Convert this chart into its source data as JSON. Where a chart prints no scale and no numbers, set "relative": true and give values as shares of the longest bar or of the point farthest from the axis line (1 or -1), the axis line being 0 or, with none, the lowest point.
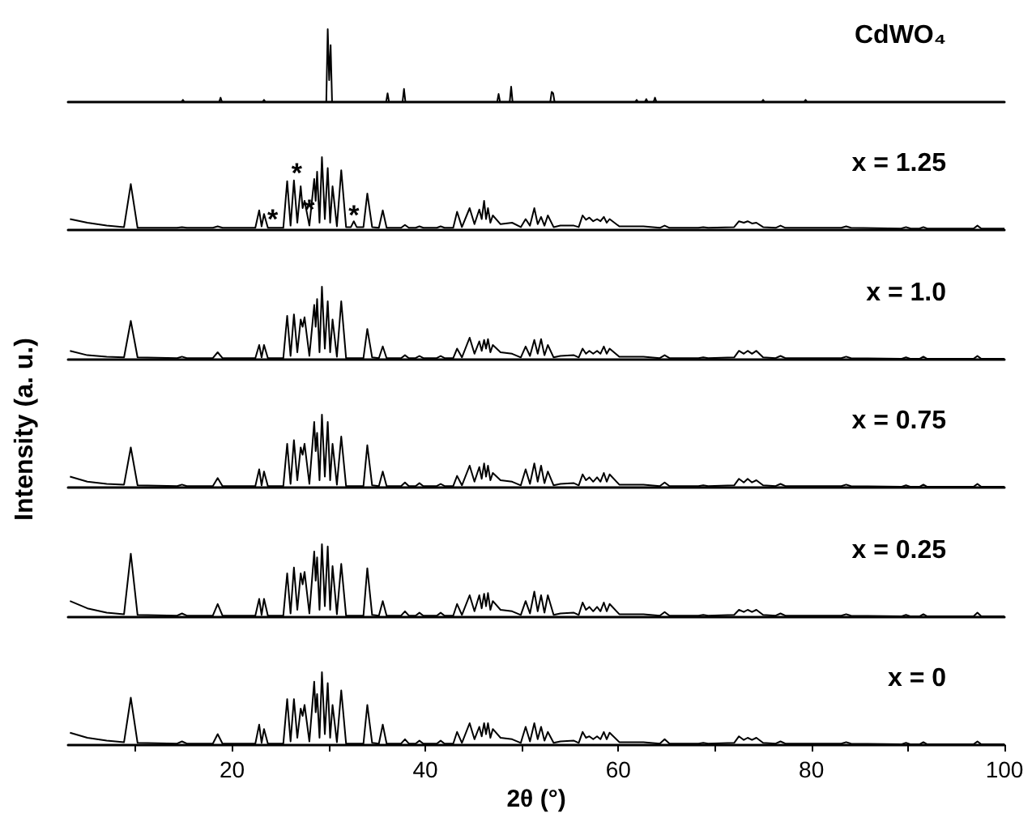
{
  "chart_data": [
    {
      "type": "line",
      "relative": true,
      "xlim": [
        3,
        100
      ],
      "tick_labels": false,
      "legend": false,
      "grid": false,
      "marker": "none",
      "x": [
        3,
        14.75,
        14.9,
        15.05,
        18.65,
        18.8,
        18.95,
        23.15,
        23.3,
        23.45,
        29.75,
        29.9,
        30.05,
        30.2,
        30.35,
        35.95,
        36.1,
        36.25,
        37.65,
        37.8,
        37.95,
        47.45,
        47.6,
        47.75,
        48.75,
        48.9,
        49.05,
        52.95,
        53.1,
        53.25,
        53.4,
        61.75,
        61.9,
        62.05,
        62.75,
        62.9,
        63.05,
        63.65,
        63.8,
        63.95,
        74.85,
        75,
        75.15,
        79.25,
        79.4,
        79.55,
        100
      ],
      "series": [
        {
          "name": "CdWO₄",
          "color": "#000000",
          "values": [
            0,
            0,
            0.03,
            0,
            0,
            0.06,
            0,
            0,
            0.03,
            0,
            0,
            1,
            0.3,
            0.78,
            0,
            0,
            0.12,
            0,
            0,
            0.18,
            0,
            0,
            0.11,
            0,
            0,
            0.21,
            0,
            0,
            0.14,
            0.12,
            0,
            0,
            0.03,
            0,
            0,
            0.04,
            0,
            0,
            0.06,
            0,
            0,
            0.03,
            0,
            0,
            0.03,
            0,
            0
          ]
        }
      ]
    },
    {
      "type": "line",
      "relative": true,
      "xlim": [
        3,
        100
      ],
      "tick_labels": false,
      "legend": false,
      "grid": false,
      "marker": "none",
      "annotations": [
        {
          "text": "*",
          "x": 24.2,
          "y": 0.15
        },
        {
          "text": "*",
          "x": 26.7,
          "y": 0.78
        },
        {
          "text": "*",
          "x": 28,
          "y": 0.28
        },
        {
          "text": "*",
          "x": 32.6,
          "y": 0.2
        }
      ],
      "x": [
        3.2,
        5,
        7,
        8.8,
        9.5,
        10.2,
        14.3,
        14.8,
        15.3,
        18,
        18.5,
        19,
        22.4,
        22.8,
        23.05,
        23.3,
        23.7,
        25.3,
        25.7,
        26.05,
        26.4,
        26.75,
        27.1,
        27.3,
        27.5,
        28,
        28.5,
        28.65,
        28.8,
        29.05,
        29.3,
        29.6,
        29.9,
        30.15,
        30.4,
        30.85,
        31.3,
        31.8,
        32.3,
        32.6,
        32.9,
        33.6,
        34,
        34.5,
        35.2,
        35.6,
        36,
        37.5,
        37.9,
        38.3,
        39,
        39.4,
        39.8,
        41.2,
        41.6,
        42,
        42.9,
        43.3,
        43.8,
        44.6,
        45.1,
        45.6,
        45.85,
        46.1,
        46.3,
        46.5,
        46.75,
        47,
        47.8,
        49,
        49.9,
        50.4,
        50.85,
        51.3,
        51.65,
        52,
        52.35,
        52.7,
        53.3,
        54,
        55.4,
        55.9,
        56.3,
        56.65,
        57,
        57.4,
        57.8,
        58.15,
        58.5,
        58.8,
        59.1,
        60.1,
        62.6,
        64.3,
        64.8,
        65.3,
        68.3,
        68.8,
        69.3,
        72,
        72.5,
        73,
        73.4,
        73.85,
        74.3,
        75,
        76.3,
        76.8,
        77.3,
        80,
        83.1,
        83.6,
        84.1,
        89.3,
        89.8,
        90.3,
        91.2,
        91.6,
        92,
        96.8,
        97.2,
        97.6,
        100
      ],
      "series": [
        {
          "name": "x = 1.25",
          "color": "#000000",
          "values": [
            0.15,
            0.1,
            0.06,
            0.04,
            0.63,
            0.03,
            0.03,
            0.04,
            0.03,
            0.03,
            0.05,
            0.03,
            0.03,
            0.27,
            0.05,
            0.22,
            0.03,
            0.03,
            0.67,
            0.06,
            0.68,
            0.1,
            0.6,
            0.3,
            0.4,
            0.06,
            0.7,
            0.4,
            0.8,
            0.1,
            1,
            0.15,
            0.85,
            0.1,
            0.6,
            0.05,
            0.82,
            0.04,
            0.04,
            0.12,
            0.04,
            0.04,
            0.5,
            0.04,
            0.03,
            0.27,
            0.03,
            0.03,
            0.07,
            0.03,
            0.03,
            0.05,
            0.03,
            0.03,
            0.05,
            0.03,
            0.03,
            0.25,
            0.04,
            0.3,
            0.08,
            0.28,
            0.15,
            0.4,
            0.15,
            0.3,
            0.1,
            0.2,
            0.08,
            0.1,
            0.04,
            0.15,
            0.06,
            0.3,
            0.08,
            0.18,
            0.06,
            0.2,
            0.04,
            0.06,
            0.06,
            0.04,
            0.2,
            0.14,
            0.17,
            0.12,
            0.15,
            0.12,
            0.18,
            0.1,
            0.15,
            0.05,
            0.05,
            0.03,
            0.06,
            0.03,
            0.03,
            0.04,
            0.03,
            0.04,
            0.12,
            0.1,
            0.12,
            0.09,
            0.1,
            0.04,
            0.03,
            0.06,
            0.03,
            0.03,
            0.03,
            0.05,
            0.03,
            0.02,
            0.04,
            0.02,
            0.02,
            0.04,
            0.02,
            0.02,
            0.06,
            0.02,
            0.02
          ]
        }
      ]
    },
    {
      "type": "line",
      "relative": true,
      "xlim": [
        3,
        100
      ],
      "tick_labels": false,
      "legend": false,
      "grid": false,
      "marker": "none",
      "x": [
        3.2,
        5,
        7,
        8.8,
        9.5,
        10.2,
        14.3,
        14.8,
        15.3,
        18,
        18.5,
        19,
        22.4,
        22.8,
        23.05,
        23.3,
        23.7,
        25.3,
        25.7,
        26.05,
        26.4,
        26.75,
        27.1,
        27.3,
        27.5,
        28,
        28.5,
        28.65,
        28.8,
        29.05,
        29.3,
        29.6,
        29.9,
        30.15,
        30.4,
        30.85,
        31.3,
        31.8,
        33.6,
        34,
        34.5,
        35.2,
        35.6,
        36,
        37.5,
        37.9,
        38.3,
        39,
        39.4,
        39.8,
        41.2,
        41.6,
        42,
        42.9,
        43.3,
        43.8,
        44.6,
        45.1,
        45.6,
        45.85,
        46.1,
        46.3,
        46.5,
        46.75,
        47,
        47.8,
        49,
        49.9,
        50.4,
        50.85,
        51.3,
        51.65,
        52,
        52.35,
        52.7,
        53.3,
        54,
        55.4,
        55.9,
        56.3,
        56.65,
        57,
        57.4,
        57.8,
        58.15,
        58.5,
        58.8,
        59.1,
        60.1,
        62.6,
        64.3,
        64.8,
        65.3,
        68.3,
        68.8,
        69.3,
        72,
        72.5,
        73,
        73.4,
        73.85,
        74.3,
        75,
        76.3,
        76.8,
        77.3,
        80,
        83.1,
        83.6,
        84.1,
        89.3,
        89.8,
        90.3,
        91.2,
        91.6,
        92,
        96.8,
        97.2,
        97.6,
        100
      ],
      "series": [
        {
          "name": "x = 1.0",
          "color": "#000000",
          "values": [
            0.12,
            0.06,
            0.04,
            0.03,
            0.53,
            0.03,
            0.02,
            0.04,
            0.02,
            0.02,
            0.1,
            0.02,
            0.02,
            0.2,
            0.03,
            0.2,
            0.02,
            0.02,
            0.6,
            0.05,
            0.62,
            0.1,
            0.55,
            0.45,
            0.58,
            0.05,
            0.75,
            0.45,
            0.83,
            0.1,
            1,
            0.15,
            0.8,
            0.1,
            0.55,
            0.04,
            0.8,
            0.02,
            0.02,
            0.42,
            0.03,
            0.02,
            0.18,
            0.02,
            0.02,
            0.06,
            0.02,
            0.02,
            0.05,
            0.02,
            0.02,
            0.05,
            0.02,
            0.02,
            0.15,
            0.03,
            0.3,
            0.08,
            0.25,
            0.12,
            0.27,
            0.15,
            0.28,
            0.1,
            0.2,
            0.1,
            0.08,
            0.03,
            0.18,
            0.05,
            0.27,
            0.08,
            0.28,
            0.06,
            0.2,
            0.03,
            0.05,
            0.06,
            0.03,
            0.15,
            0.08,
            0.12,
            0.08,
            0.12,
            0.08,
            0.18,
            0.08,
            0.15,
            0.04,
            0.04,
            0.02,
            0.06,
            0.02,
            0.02,
            0.03,
            0.02,
            0.03,
            0.12,
            0.08,
            0.12,
            0.08,
            0.12,
            0.03,
            0.02,
            0.05,
            0.02,
            0.02,
            0.02,
            0.04,
            0.02,
            0.01,
            0.03,
            0.01,
            0.01,
            0.04,
            0.01,
            0.01,
            0.05,
            0.01,
            0.01
          ]
        }
      ]
    },
    {
      "type": "line",
      "relative": true,
      "xlim": [
        3,
        100
      ],
      "tick_labels": false,
      "legend": false,
      "grid": false,
      "marker": "none",
      "ylabel": "Intensity (a. u.)",
      "x": [
        3.2,
        5,
        7,
        8.8,
        9.5,
        10.2,
        14.3,
        14.8,
        15.3,
        18,
        18.5,
        19,
        22.4,
        22.8,
        23.05,
        23.3,
        23.7,
        25.3,
        25.7,
        26.05,
        26.4,
        26.75,
        27.1,
        27.3,
        27.5,
        28,
        28.5,
        28.65,
        28.8,
        29.05,
        29.3,
        29.6,
        29.9,
        30.15,
        30.4,
        30.85,
        31.3,
        31.8,
        33.6,
        34,
        34.5,
        35.2,
        35.6,
        36,
        37.5,
        37.9,
        38.3,
        39,
        39.4,
        39.8,
        41.2,
        41.6,
        42,
        42.9,
        43.3,
        43.8,
        44.6,
        45.1,
        45.6,
        45.85,
        46.1,
        46.3,
        46.5,
        46.75,
        47,
        47.8,
        49,
        49.9,
        50.4,
        50.85,
        51.3,
        51.65,
        52,
        52.35,
        52.7,
        53.3,
        54,
        55.4,
        55.9,
        56.3,
        56.65,
        57,
        57.4,
        57.8,
        58.15,
        58.5,
        58.8,
        59.1,
        60.1,
        62.6,
        64.3,
        64.8,
        65.3,
        68.3,
        68.8,
        69.3,
        72,
        72.5,
        73,
        73.4,
        73.85,
        74.3,
        75,
        76.3,
        76.8,
        77.3,
        80,
        83.1,
        83.6,
        84.1,
        89.3,
        89.8,
        90.3,
        91.2,
        91.6,
        92,
        96.8,
        97.2,
        97.6,
        100
      ],
      "series": [
        {
          "name": "x = 0.75",
          "color": "#000000",
          "values": [
            0.15,
            0.08,
            0.05,
            0.04,
            0.55,
            0.03,
            0.02,
            0.04,
            0.02,
            0.02,
            0.13,
            0.02,
            0.02,
            0.25,
            0.03,
            0.22,
            0.02,
            0.02,
            0.6,
            0.05,
            0.65,
            0.1,
            0.55,
            0.45,
            0.6,
            0.05,
            0.9,
            0.5,
            0.75,
            0.1,
            1,
            0.15,
            0.9,
            0.1,
            0.6,
            0.04,
            0.7,
            0.02,
            0.02,
            0.58,
            0.03,
            0.02,
            0.22,
            0.02,
            0.02,
            0.07,
            0.02,
            0.02,
            0.06,
            0.02,
            0.02,
            0.05,
            0.02,
            0.02,
            0.16,
            0.03,
            0.3,
            0.08,
            0.28,
            0.12,
            0.33,
            0.15,
            0.3,
            0.1,
            0.2,
            0.1,
            0.08,
            0.03,
            0.25,
            0.05,
            0.33,
            0.08,
            0.3,
            0.06,
            0.22,
            0.03,
            0.05,
            0.06,
            0.03,
            0.18,
            0.1,
            0.14,
            0.08,
            0.14,
            0.08,
            0.2,
            0.08,
            0.18,
            0.04,
            0.04,
            0.02,
            0.07,
            0.02,
            0.02,
            0.03,
            0.02,
            0.03,
            0.12,
            0.07,
            0.12,
            0.07,
            0.1,
            0.03,
            0.02,
            0.05,
            0.02,
            0.02,
            0.02,
            0.04,
            0.02,
            0.01,
            0.03,
            0.01,
            0.01,
            0.04,
            0.01,
            0.01,
            0.05,
            0.01,
            0.01
          ]
        }
      ]
    },
    {
      "type": "line",
      "relative": true,
      "xlim": [
        3,
        100
      ],
      "tick_labels": false,
      "legend": false,
      "grid": false,
      "marker": "none",
      "x": [
        3.2,
        5,
        7,
        8.8,
        9.5,
        10.2,
        14.3,
        14.8,
        15.3,
        18,
        18.5,
        19,
        22.4,
        22.8,
        23.05,
        23.3,
        23.7,
        25.3,
        25.7,
        26.05,
        26.4,
        26.75,
        27.1,
        27.3,
        27.5,
        28,
        28.5,
        28.65,
        28.8,
        29.05,
        29.3,
        29.6,
        29.9,
        30.15,
        30.4,
        30.85,
        31.3,
        31.8,
        33.6,
        34,
        34.5,
        35.2,
        35.6,
        36,
        37.5,
        37.9,
        38.3,
        39,
        39.4,
        39.8,
        41.2,
        41.6,
        42,
        42.9,
        43.3,
        43.8,
        44.6,
        45.1,
        45.6,
        45.85,
        46.1,
        46.3,
        46.5,
        46.75,
        47,
        47.8,
        49,
        49.9,
        50.4,
        50.85,
        51.3,
        51.65,
        52,
        52.35,
        52.7,
        53.3,
        54,
        55.4,
        55.9,
        56.3,
        56.65,
        57,
        57.4,
        57.8,
        58.15,
        58.5,
        58.8,
        59.1,
        60.1,
        62.6,
        64.3,
        64.8,
        65.3,
        68.3,
        68.8,
        69.3,
        72,
        72.5,
        73,
        73.4,
        73.85,
        74.3,
        75,
        76.3,
        76.8,
        77.3,
        80,
        83.1,
        83.6,
        84.1,
        89.3,
        89.8,
        90.3,
        91.2,
        91.6,
        92,
        96.8,
        97.2,
        97.6,
        100
      ],
      "series": [
        {
          "name": "x = 0.25",
          "color": "#000000",
          "values": [
            0.22,
            0.12,
            0.06,
            0.04,
            0.87,
            0.03,
            0.02,
            0.05,
            0.02,
            0.02,
            0.18,
            0.02,
            0.02,
            0.25,
            0.03,
            0.25,
            0.02,
            0.02,
            0.6,
            0.05,
            0.68,
            0.1,
            0.6,
            0.45,
            0.62,
            0.05,
            0.9,
            0.5,
            0.82,
            0.1,
            1,
            0.15,
            0.97,
            0.1,
            0.7,
            0.04,
            0.73,
            0.02,
            0.02,
            0.67,
            0.03,
            0.02,
            0.22,
            0.02,
            0.02,
            0.08,
            0.02,
            0.02,
            0.06,
            0.02,
            0.02,
            0.06,
            0.02,
            0.02,
            0.18,
            0.03,
            0.3,
            0.08,
            0.3,
            0.12,
            0.32,
            0.15,
            0.33,
            0.1,
            0.22,
            0.1,
            0.08,
            0.03,
            0.22,
            0.05,
            0.35,
            0.08,
            0.3,
            0.06,
            0.3,
            0.03,
            0.05,
            0.06,
            0.03,
            0.2,
            0.1,
            0.14,
            0.08,
            0.14,
            0.08,
            0.2,
            0.08,
            0.18,
            0.04,
            0.04,
            0.02,
            0.07,
            0.02,
            0.02,
            0.03,
            0.02,
            0.03,
            0.1,
            0.07,
            0.1,
            0.07,
            0.1,
            0.03,
            0.02,
            0.05,
            0.02,
            0.02,
            0.02,
            0.04,
            0.02,
            0.01,
            0.03,
            0.01,
            0.01,
            0.04,
            0.01,
            0.01,
            0.06,
            0.01,
            0.01
          ]
        }
      ]
    },
    {
      "type": "line",
      "relative": true,
      "xlim": [
        3,
        100
      ],
      "tick_labels": "x",
      "legend": false,
      "grid": false,
      "marker": "none",
      "xlabel": "2θ (°)",
      "xticks": [
        {
          "value": 10,
          "label": null
        },
        20,
        {
          "value": 30,
          "label": null
        },
        40,
        {
          "value": 50,
          "label": null
        },
        60,
        {
          "value": 70,
          "label": null
        },
        80,
        {
          "value": 90,
          "label": null
        },
        100
      ],
      "x": [
        3.2,
        5,
        7,
        8.8,
        9.5,
        10.2,
        14.3,
        14.8,
        15.3,
        18,
        18.5,
        19,
        22.4,
        22.8,
        23.05,
        23.3,
        23.7,
        25.3,
        25.7,
        26.05,
        26.4,
        26.75,
        27.1,
        27.3,
        27.5,
        28,
        28.5,
        28.65,
        28.8,
        29.05,
        29.3,
        29.6,
        29.9,
        30.15,
        30.4,
        30.85,
        31.3,
        31.8,
        33.6,
        34,
        34.5,
        35.2,
        35.6,
        36,
        37.5,
        37.9,
        38.3,
        39,
        39.4,
        39.8,
        41.2,
        41.6,
        42,
        42.9,
        43.3,
        43.8,
        44.6,
        45.1,
        45.6,
        45.85,
        46.1,
        46.3,
        46.5,
        46.75,
        47,
        47.8,
        49,
        49.9,
        50.4,
        50.85,
        51.3,
        51.65,
        52,
        52.35,
        52.7,
        53.3,
        54,
        55.4,
        55.9,
        56.3,
        56.65,
        57,
        57.4,
        57.8,
        58.15,
        58.5,
        58.8,
        59.1,
        60.1,
        62.6,
        64.3,
        64.8,
        65.3,
        68.3,
        68.8,
        69.3,
        72,
        72.5,
        73,
        73.4,
        73.85,
        74.3,
        75,
        76.3,
        76.8,
        77.3,
        80,
        83.1,
        83.6,
        84.1,
        89.3,
        89.8,
        90.3,
        91.2,
        91.6,
        92,
        96.8,
        97.2,
        97.6,
        100
      ],
      "series": [
        {
          "name": "x = 0",
          "color": "#000000",
          "values": [
            0.17,
            0.1,
            0.06,
            0.04,
            0.65,
            0.03,
            0.02,
            0.05,
            0.02,
            0.02,
            0.15,
            0.02,
            0.02,
            0.28,
            0.03,
            0.22,
            0.02,
            0.02,
            0.63,
            0.05,
            0.63,
            0.1,
            0.5,
            0.4,
            0.55,
            0.05,
            0.87,
            0.45,
            0.7,
            0.1,
            1,
            0.15,
            0.85,
            0.1,
            0.55,
            0.04,
            0.75,
            0.02,
            0.02,
            0.55,
            0.03,
            0.02,
            0.28,
            0.02,
            0.02,
            0.08,
            0.02,
            0.02,
            0.06,
            0.02,
            0.02,
            0.06,
            0.02,
            0.02,
            0.18,
            0.03,
            0.3,
            0.08,
            0.25,
            0.12,
            0.3,
            0.15,
            0.3,
            0.1,
            0.22,
            0.1,
            0.08,
            0.03,
            0.25,
            0.05,
            0.3,
            0.08,
            0.25,
            0.06,
            0.18,
            0.03,
            0.05,
            0.06,
            0.03,
            0.18,
            0.1,
            0.12,
            0.08,
            0.12,
            0.08,
            0.18,
            0.08,
            0.17,
            0.04,
            0.04,
            0.02,
            0.08,
            0.02,
            0.02,
            0.03,
            0.02,
            0.03,
            0.12,
            0.07,
            0.1,
            0.07,
            0.1,
            0.03,
            0.02,
            0.05,
            0.02,
            0.02,
            0.02,
            0.04,
            0.02,
            0.01,
            0.03,
            0.01,
            0.01,
            0.04,
            0.01,
            0.01,
            0.05,
            0.01,
            0.01
          ]
        }
      ]
    }
  ]
}
